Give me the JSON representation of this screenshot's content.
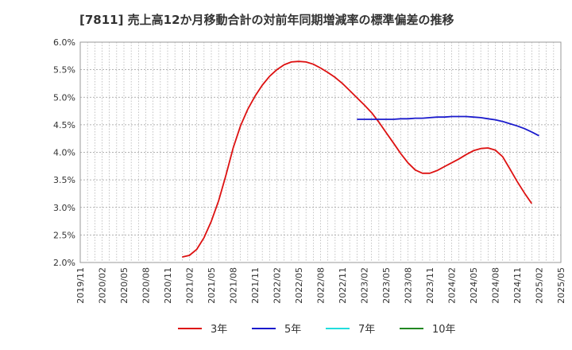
{
  "chart_data": {
    "type": "line",
    "title": "[7811]  売上高12か月移動合計の対前年同期増減率の標準偏差の推移",
    "xlabel": "",
    "ylabel": "",
    "ylim": [
      2.0,
      6.0
    ],
    "y_ticks": [
      "2.0%",
      "2.5%",
      "3.0%",
      "3.5%",
      "4.0%",
      "4.5%",
      "5.0%",
      "5.5%",
      "6.0%"
    ],
    "y_tick_values": [
      2.0,
      2.5,
      3.0,
      3.5,
      4.0,
      4.5,
      5.0,
      5.5,
      6.0
    ],
    "x_ticks": [
      "2019/11",
      "2020/02",
      "2020/05",
      "2020/08",
      "2020/11",
      "2021/02",
      "2021/05",
      "2021/08",
      "2021/11",
      "2022/02",
      "2022/05",
      "2022/08",
      "2022/11",
      "2023/02",
      "2023/05",
      "2023/08",
      "2023/11",
      "2024/02",
      "2024/05",
      "2024/08",
      "2024/11",
      "2025/02",
      "2025/05"
    ],
    "x_start": "2019/11",
    "x_end": "2025/05",
    "grid": true,
    "legend_position": "bottom",
    "series": [
      {
        "name": "3年",
        "color": "#dd1111",
        "start": "2021/01",
        "values": [
          2.1,
          2.13,
          2.24,
          2.45,
          2.75,
          3.12,
          3.58,
          4.08,
          4.48,
          4.78,
          5.02,
          5.22,
          5.38,
          5.5,
          5.59,
          5.64,
          5.65,
          5.64,
          5.6,
          5.53,
          5.45,
          5.36,
          5.25,
          5.12,
          4.99,
          4.86,
          4.72,
          4.55,
          4.36,
          4.17,
          3.98,
          3.81,
          3.68,
          3.62,
          3.62,
          3.67,
          3.74,
          3.81,
          3.88,
          3.96,
          4.03,
          4.07,
          4.08,
          4.04,
          3.92,
          3.7,
          3.47,
          3.26,
          3.07
        ]
      },
      {
        "name": "5年",
        "color": "#1a1acc",
        "start": "2023/01",
        "values": [
          4.6,
          4.6,
          4.6,
          4.6,
          4.6,
          4.6,
          4.61,
          4.61,
          4.62,
          4.62,
          4.63,
          4.64,
          4.64,
          4.65,
          4.65,
          4.65,
          4.64,
          4.63,
          4.61,
          4.59,
          4.56,
          4.52,
          4.48,
          4.43,
          4.37,
          4.3
        ]
      },
      {
        "name": "7年",
        "color": "#22dddd",
        "start": "2023/01",
        "values": []
      },
      {
        "name": "10年",
        "color": "#228822",
        "start": "2023/01",
        "values": []
      }
    ]
  }
}
